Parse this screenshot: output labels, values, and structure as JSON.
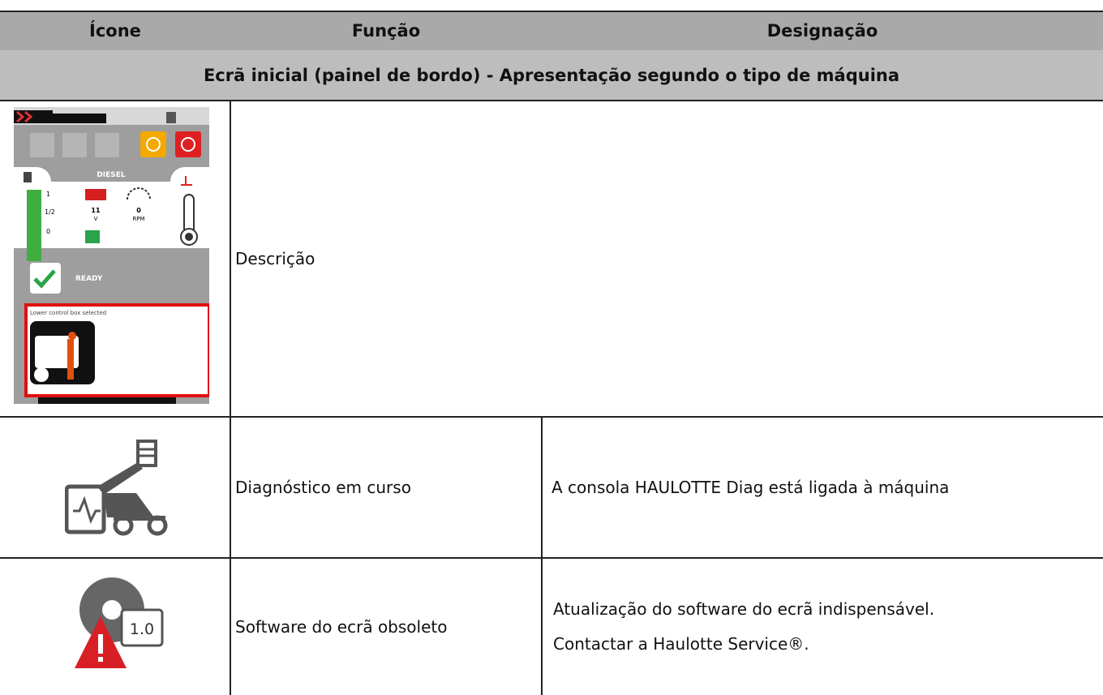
{
  "table": {
    "header": [
      "Ícone",
      "Função",
      "Designação"
    ],
    "section": "Ecrã inicial (painel de bordo)  -  Apresentação segundo o tipo de máquina",
    "rows": [
      {
        "function": "Descrição"
      },
      {
        "function": "Diagnóstico em curso",
        "designation": [
          "A consola HAULOTTE Diag está ligada à máquina"
        ]
      },
      {
        "function": "Software do ecrã obsoleto",
        "designation": [
          "Atualização do software do ecrã indispensável.",
          "Contactar a Haulotte Service®."
        ]
      }
    ]
  },
  "icons": {
    "dashboard": {
      "fuel": "DIESEL",
      "fuel_levels": [
        "1",
        "1/2",
        "0"
      ],
      "battery_value": "11",
      "battery_unit": "V",
      "rpm_value": "0",
      "rpm_unit": "RPM",
      "status": "READY",
      "message": "Lower control box selected"
    },
    "software_version": "1.0"
  }
}
